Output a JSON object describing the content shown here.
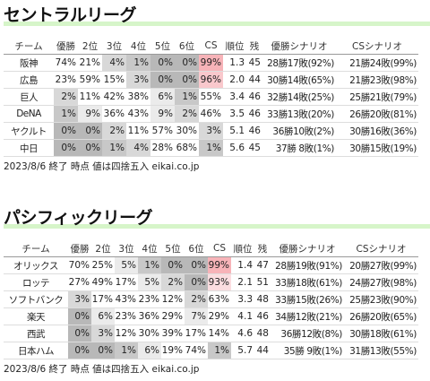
{
  "leagues": [
    {
      "title": "セントラルリーグ",
      "header": [
        "チーム",
        "優勝",
        "2位",
        "3位",
        "4位",
        "5位",
        "6位",
        "CS",
        "順位",
        "残",
        "優勝シナリオ",
        "CSシナリオ"
      ],
      "rows": [
        [
          "阪神",
          "74%",
          "21%",
          "4%",
          "1%",
          "0%",
          "0%",
          "99%",
          "1.3",
          "45",
          "28勝17敗(92%)",
          "21勝24敗(99%)"
        ],
        [
          "広島",
          "23%",
          "59%",
          "15%",
          "3%",
          "0%",
          "0%",
          "96%",
          "2.0",
          "44",
          "30勝14敗(65%)",
          "21勝23敗(98%)"
        ],
        [
          "巨人",
          "2%",
          "11%",
          "42%",
          "38%",
          "6%",
          "1%",
          "55%",
          "3.4",
          "46",
          "32勝14敗(25%)",
          "25勝21敗(79%)"
        ],
        [
          "DeNA",
          "1%",
          "9%",
          "36%",
          "43%",
          "9%",
          "2%",
          "46%",
          "3.5",
          "46",
          "33勝13敗(20%)",
          "26勝20敗(81%)"
        ],
        [
          "ヤクルト",
          "0%",
          "0%",
          "2%",
          "11%",
          "57%",
          "30%",
          "3%",
          "5.1",
          "46",
          "36勝10敗(2%)",
          "30勝16敗(36%)"
        ],
        [
          "中日",
          "0%",
          "0%",
          "1%",
          "4%",
          "28%",
          "68%",
          "1%",
          "5.6",
          "45",
          "37勝 8敗(1%)",
          "30勝15敗(19%)"
        ]
      ],
      "footer": "2023/8/6 終了 時点 値は四捨五入 eikai.co.jp"
    },
    {
      "title": "パシフィックリーグ",
      "header": [
        "チーム",
        "優勝",
        "2位",
        "3位",
        "4位",
        "5位",
        "6位",
        "CS",
        "順位",
        "残",
        "優勝シナリオ",
        "CSシナリオ"
      ],
      "rows": [
        [
          "オリックス",
          "70%",
          "25%",
          "5%",
          "1%",
          "0%",
          "0%",
          "99%",
          "1.4",
          "47",
          "28勝19敗(91%)",
          "20勝27敗(99%)"
        ],
        [
          "ロッテ",
          "27%",
          "49%",
          "17%",
          "5%",
          "2%",
          "0%",
          "93%",
          "2.1",
          "51",
          "33勝18敗(61%)",
          "24勝27敗(98%)"
        ],
        [
          "ソフトバンク",
          "3%",
          "17%",
          "43%",
          "23%",
          "12%",
          "2%",
          "63%",
          "3.3",
          "48",
          "33勝15敗(26%)",
          "25勝23敗(90%)"
        ],
        [
          "楽天",
          "0%",
          "6%",
          "23%",
          "36%",
          "29%",
          "7%",
          "29%",
          "4.1",
          "46",
          "34勝12敗(21%)",
          "26勝20敗(65%)"
        ],
        [
          "西武",
          "0%",
          "3%",
          "12%",
          "30%",
          "39%",
          "17%",
          "14%",
          "4.6",
          "48",
          "36勝12敗(8%)",
          "30勝18敗(61%)"
        ],
        [
          "日本ハム",
          "0%",
          "0%",
          "1%",
          "6%",
          "19%",
          "74%",
          "1%",
          "5.7",
          "44",
          "35勝 9敗(1%)",
          "31勝13敗(55%)"
        ]
      ],
      "footer": "2023/8/6 終了 時点 値は四捨五入 eikai.co.jp"
    }
  ]
}
